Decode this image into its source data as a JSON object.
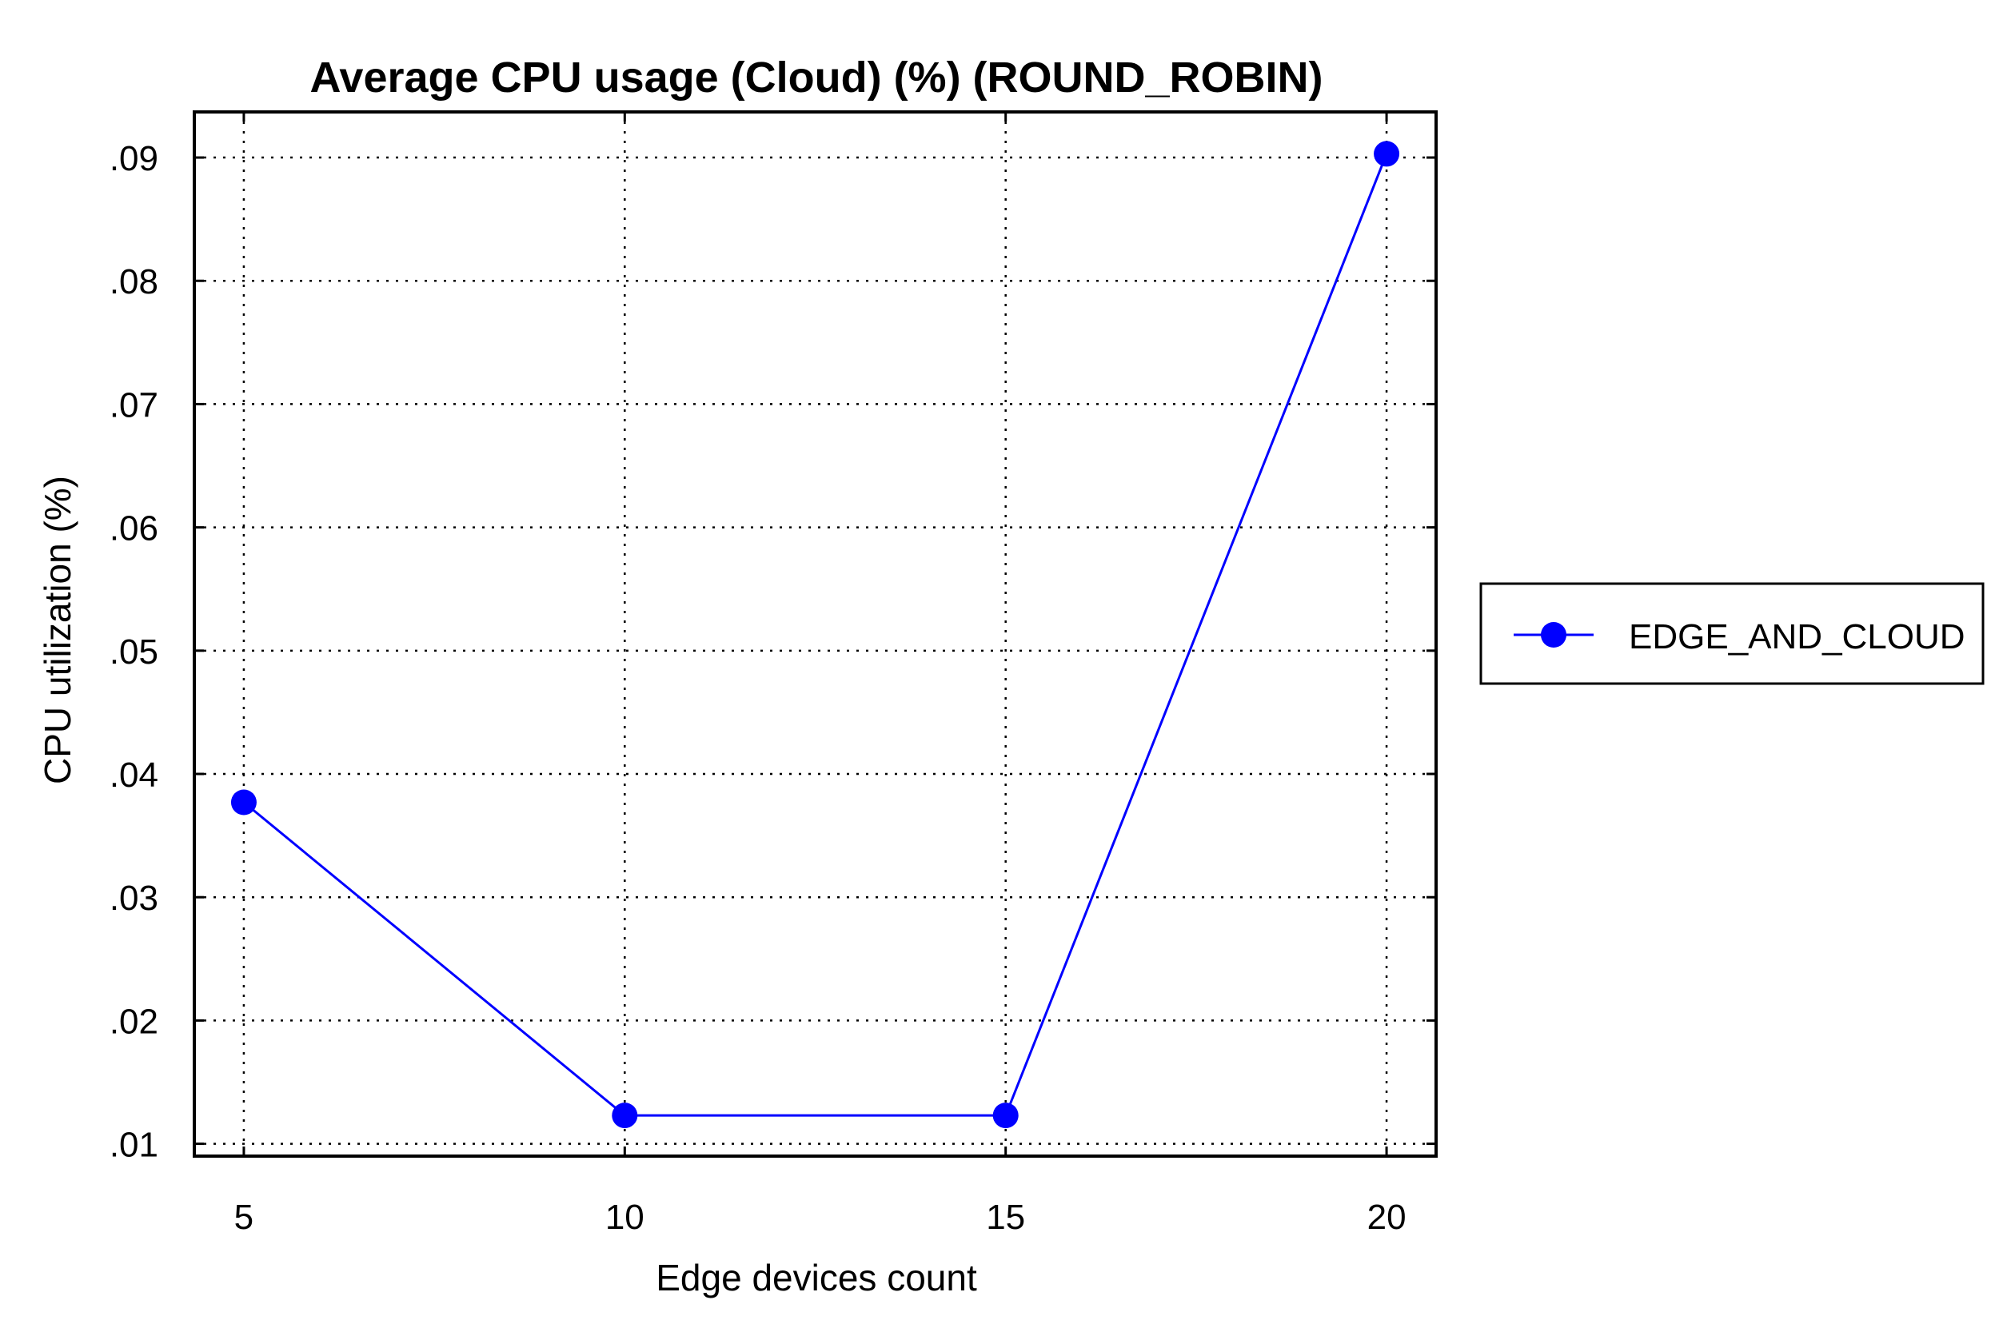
{
  "chart_data": {
    "type": "line",
    "title": "Average CPU usage (Cloud) (%) (ROUND_ROBIN)",
    "xlabel": "Edge devices count",
    "ylabel": "CPU utilization (%)",
    "x": [
      5,
      10,
      15,
      20
    ],
    "xticks": [
      5,
      10,
      15,
      20
    ],
    "xtick_labels": [
      "5",
      "10",
      "15",
      "20"
    ],
    "xlim": [
      4.35,
      20.65
    ],
    "yticks": [
      0.01,
      0.02,
      0.03,
      0.04,
      0.05,
      0.06,
      0.07,
      0.08,
      0.09
    ],
    "ytick_labels": [
      ".01",
      ".02",
      ".03",
      ".04",
      ".05",
      ".06",
      ".07",
      ".08",
      ".09"
    ],
    "ylim": [
      0.009,
      0.0937
    ],
    "grid": true,
    "legend_position": "right",
    "series": [
      {
        "name": "EDGE_AND_CLOUD",
        "color": "#0000ff",
        "marker": "circle",
        "values": [
          0.0377,
          0.0123,
          0.0123,
          0.0903
        ]
      }
    ]
  }
}
